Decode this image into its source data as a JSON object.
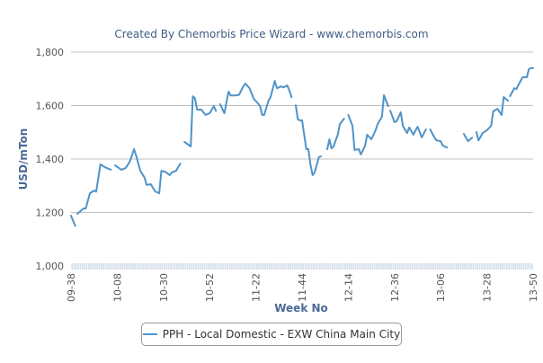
{
  "chart_data": {
    "type": "line",
    "title": "Created By Chemorbis Price Wizard - www.chemorbis.com",
    "xlabel": "Week No",
    "ylabel": "USD/mTon",
    "ylim": [
      1000,
      1800
    ],
    "yticks": [
      "1,000",
      "1,200",
      "1,400",
      "1,600",
      "1,800"
    ],
    "ytick_values": [
      1000,
      1200,
      1400,
      1600,
      1800
    ],
    "xticks": [
      "09-38",
      "10-08",
      "10-30",
      "10-52",
      "11-22",
      "11-44",
      "12-14",
      "12-36",
      "13-06",
      "13-28",
      "13-50"
    ],
    "xrange": [
      "09-38",
      "13-50"
    ],
    "grid": "horizontal",
    "legend_position": "bottom",
    "color": "#4f93c8",
    "series": [
      {
        "name": "PPH - Local Domestic - EXW China Main City",
        "segments": [
          [
            [
              "09-38",
              1188
            ],
            [
              "09-40",
              1150
            ]
          ],
          [
            [
              "09-41",
              1195
            ],
            [
              "09-44",
              1215
            ],
            [
              "09-45",
              1215
            ],
            [
              "09-47",
              1272
            ],
            [
              "09-49",
              1282
            ],
            [
              "09-50",
              1278
            ],
            [
              "09-52",
              1380
            ],
            [
              "10-02",
              1370
            ],
            [
              "10-04",
              1363
            ],
            [
              "10-05",
              1360
            ]
          ],
          [
            [
              "10-07",
              1376
            ],
            [
              "10-10",
              1360
            ],
            [
              "10-12",
              1366
            ],
            [
              "10-14",
              1390
            ],
            [
              "10-16",
              1437
            ],
            [
              "10-17",
              1413
            ],
            [
              "10-19",
              1356
            ],
            [
              "10-21",
              1330
            ],
            [
              "10-22",
              1303
            ],
            [
              "10-24",
              1306
            ],
            [
              "10-26",
              1279
            ],
            [
              "10-28",
              1272
            ],
            [
              "10-29",
              1356
            ],
            [
              "10-31",
              1352
            ],
            [
              "10-33",
              1340
            ],
            [
              "10-34",
              1350
            ],
            [
              "10-36",
              1356
            ],
            [
              "10-38",
              1383
            ]
          ],
          [
            [
              "10-40",
              1464
            ],
            [
              "10-43",
              1447
            ],
            [
              "10-44",
              1635
            ],
            [
              "10-45",
              1628
            ],
            [
              "10-46",
              1585
            ],
            [
              "10-48",
              1585
            ],
            [
              "10-50",
              1565
            ],
            [
              "10-52",
              1571
            ],
            [
              "11-02",
              1598
            ],
            [
              "11-03",
              1580
            ]
          ],
          [
            [
              "11-05",
              1605
            ],
            [
              "11-07",
              1571
            ],
            [
              "11-09",
              1652
            ],
            [
              "11-10",
              1638
            ],
            [
              "11-12",
              1638
            ],
            [
              "11-14",
              1640
            ],
            [
              "11-16",
              1672
            ],
            [
              "11-17",
              1682
            ],
            [
              "11-19",
              1665
            ],
            [
              "11-21",
              1625
            ],
            [
              "11-23",
              1608
            ],
            [
              "11-24",
              1598
            ],
            [
              "11-25",
              1565
            ],
            [
              "11-26",
              1565
            ],
            [
              "11-28",
              1618
            ],
            [
              "11-29",
              1632
            ],
            [
              "11-31",
              1692
            ],
            [
              "11-32",
              1665
            ],
            [
              "11-34",
              1672
            ],
            [
              "11-35",
              1668
            ],
            [
              "11-37",
              1675
            ],
            [
              "11-38",
              1655
            ],
            [
              "11-39",
              1632
            ]
          ],
          [
            [
              "11-41",
              1601
            ],
            [
              "11-42",
              1548
            ],
            [
              "11-43",
              1545
            ],
            [
              "11-44",
              1545
            ],
            [
              "11-46",
              1437
            ],
            [
              "11-47",
              1437
            ],
            [
              "11-48",
              1380
            ],
            [
              "11-49",
              1340
            ],
            [
              "11-50",
              1350
            ],
            [
              "11-52",
              1407
            ],
            [
              "12-01",
              1410
            ]
          ],
          [
            [
              "12-04",
              1437
            ],
            [
              "12-05",
              1474
            ],
            [
              "12-06",
              1440
            ],
            [
              "12-07",
              1447
            ],
            [
              "12-09",
              1491
            ],
            [
              "12-10",
              1531
            ],
            [
              "12-12",
              1551
            ]
          ],
          [
            [
              "12-14",
              1565
            ],
            [
              "12-16",
              1524
            ],
            [
              "12-17",
              1434
            ],
            [
              "12-19",
              1437
            ],
            [
              "12-20",
              1417
            ],
            [
              "12-22",
              1450
            ],
            [
              "12-23",
              1491
            ],
            [
              "12-25",
              1474
            ],
            [
              "12-27",
              1508
            ],
            [
              "12-28",
              1531
            ],
            [
              "12-30",
              1558
            ],
            [
              "12-31",
              1639
            ],
            [
              "12-33",
              1598
            ]
          ],
          [
            [
              "12-34",
              1581
            ],
            [
              "12-36",
              1538
            ],
            [
              "12-37",
              1541
            ],
            [
              "12-39",
              1575
            ],
            [
              "12-40",
              1524
            ],
            [
              "12-42",
              1497
            ],
            [
              "12-43",
              1518
            ],
            [
              "12-45",
              1491
            ],
            [
              "12-47",
              1521
            ],
            [
              "12-49",
              1481
            ],
            [
              "12-51",
              1511
            ]
          ],
          [
            [
              "13-01",
              1511
            ],
            [
              "13-03",
              1481
            ],
            [
              "13-04",
              1470
            ],
            [
              "13-06",
              1467
            ],
            [
              "13-07",
              1450
            ],
            [
              "13-09",
              1443
            ]
          ],
          [
            [
              "13-17",
              1494
            ],
            [
              "13-19",
              1467
            ],
            [
              "13-21",
              1480
            ]
          ],
          [
            [
              "13-23",
              1501
            ],
            [
              "13-24",
              1470
            ],
            [
              "13-26",
              1497
            ],
            [
              "13-28",
              1508
            ],
            [
              "13-30",
              1524
            ],
            [
              "13-31",
              1578
            ],
            [
              "13-33",
              1588
            ],
            [
              "13-35",
              1565
            ],
            [
              "13-36",
              1632
            ],
            [
              "13-38",
              1618
            ]
          ],
          [
            [
              "13-39",
              1635
            ],
            [
              "13-41",
              1665
            ],
            [
              "13-42",
              1662
            ],
            [
              "13-44",
              1692
            ],
            [
              "13-45",
              1706
            ],
            [
              "13-47",
              1706
            ],
            [
              "13-48",
              1736
            ],
            [
              "13-49",
              1740
            ],
            [
              "13-50",
              1740
            ]
          ]
        ]
      }
    ]
  }
}
